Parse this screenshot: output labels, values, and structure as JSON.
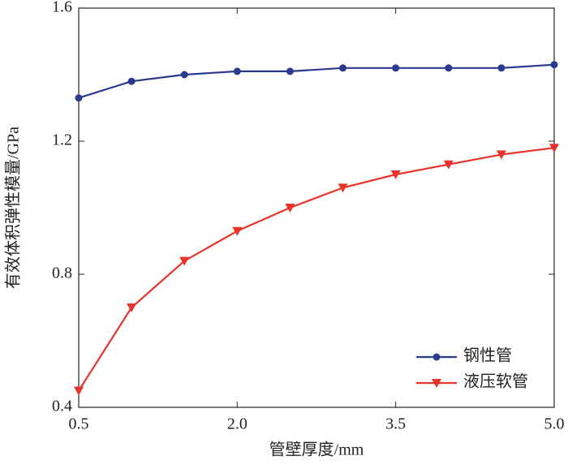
{
  "chart_data": {
    "type": "line",
    "xlabel": "管壁厚度/mm",
    "ylabel": "有效体积弹性模量/GPa",
    "x": [
      0.5,
      1.0,
      1.5,
      2.0,
      2.5,
      3.0,
      3.5,
      4.0,
      4.5,
      5.0
    ],
    "series": [
      {
        "name": "钢性管",
        "color": "#2b3a8f",
        "marker": "circle",
        "values": [
          1.33,
          1.38,
          1.4,
          1.41,
          1.41,
          1.42,
          1.42,
          1.42,
          1.42,
          1.43
        ]
      },
      {
        "name": "液压软管",
        "color": "#e8332a",
        "marker": "triangle-down",
        "values": [
          0.45,
          0.7,
          0.84,
          0.93,
          1.0,
          1.06,
          1.1,
          1.13,
          1.16,
          1.18
        ]
      }
    ],
    "xlim": [
      0.5,
      5.0
    ],
    "xticks": [
      {
        "value": 0.5,
        "label": "0.5"
      },
      {
        "value": 2.0,
        "label": "2.0"
      },
      {
        "value": 3.5,
        "label": "3.5"
      },
      {
        "value": 5.0,
        "label": "5.0"
      }
    ],
    "ylim": [
      0.4,
      1.6
    ],
    "yticks": [
      0.4,
      0.8,
      1.2,
      1.6
    ],
    "legend": "lower right"
  }
}
